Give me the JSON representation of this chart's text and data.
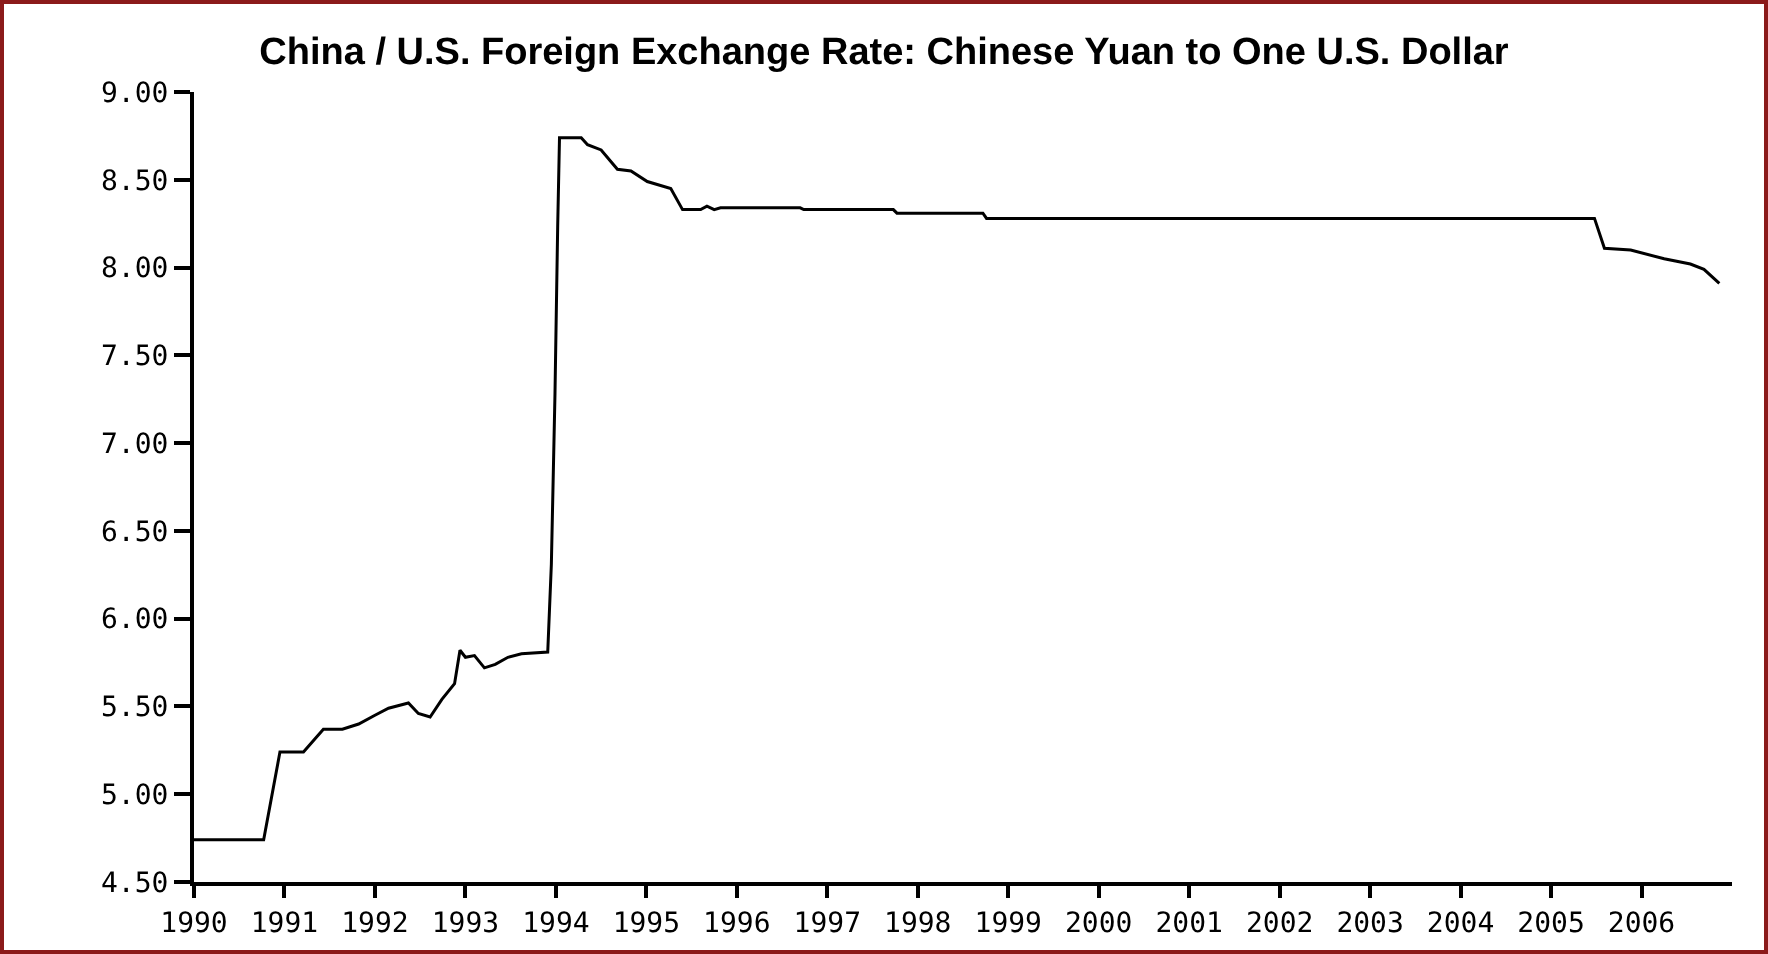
{
  "chart_data": {
    "type": "line",
    "title": "China / U.S. Foreign Exchange Rate: Chinese Yuan to One U.S. Dollar",
    "series": [
      {
        "color": "#000000",
        "x": [
          1990.0,
          1990.77,
          1990.95,
          1991.21,
          1991.43,
          1991.64,
          1991.82,
          1992.0,
          1992.15,
          1992.37,
          1992.48,
          1992.61,
          1992.74,
          1992.88,
          1992.94,
          1993.0,
          1993.1,
          1993.21,
          1993.33,
          1993.47,
          1993.62,
          1993.91,
          1993.95,
          1993.99,
          1994.02,
          1994.04,
          1994.28,
          1994.35,
          1994.5,
          1994.68,
          1994.83,
          1995.01,
          1995.27,
          1995.4,
          1995.6,
          1995.67,
          1995.75,
          1995.82,
          1996.7,
          1996.74,
          1997.73,
          1997.77,
          1998.72,
          1998.76,
          2005.48,
          2005.59,
          2005.88,
          2006.25,
          2006.54,
          2006.69,
          2006.86
        ],
        "values": [
          4.74,
          4.74,
          5.24,
          5.24,
          5.37,
          5.37,
          5.4,
          5.45,
          5.49,
          5.52,
          5.46,
          5.44,
          5.54,
          5.63,
          5.82,
          5.78,
          5.79,
          5.72,
          5.74,
          5.78,
          5.8,
          5.81,
          6.31,
          7.28,
          8.24,
          8.74,
          8.74,
          8.7,
          8.67,
          8.56,
          8.55,
          8.49,
          8.45,
          8.33,
          8.33,
          8.35,
          8.33,
          8.34,
          8.34,
          8.33,
          8.33,
          8.31,
          8.31,
          8.28,
          8.28,
          8.11,
          8.1,
          8.05,
          8.02,
          7.99,
          7.91
        ]
      }
    ],
    "xlim": [
      1990,
      2007
    ],
    "xticks": [
      1990,
      1991,
      1992,
      1993,
      1994,
      1995,
      1996,
      1997,
      1998,
      1999,
      2000,
      2001,
      2002,
      2003,
      2004,
      2005,
      2006
    ],
    "ylim": [
      4.5,
      9
    ],
    "yticks": [
      {
        "value": 4.5,
        "label": "4.50"
      },
      {
        "value": 5,
        "label": "5.00"
      },
      {
        "value": 5.5,
        "label": "5.50"
      },
      {
        "value": 6,
        "label": "6.00"
      },
      {
        "value": 6.5,
        "label": "6.50"
      },
      {
        "value": 7,
        "label": "7.00"
      },
      {
        "value": 7.5,
        "label": "7.50"
      },
      {
        "value": 8,
        "label": "8.00"
      },
      {
        "value": 8.5,
        "label": "8.50"
      },
      {
        "value": 9,
        "label": "9.00"
      }
    ],
    "grid": false
  }
}
